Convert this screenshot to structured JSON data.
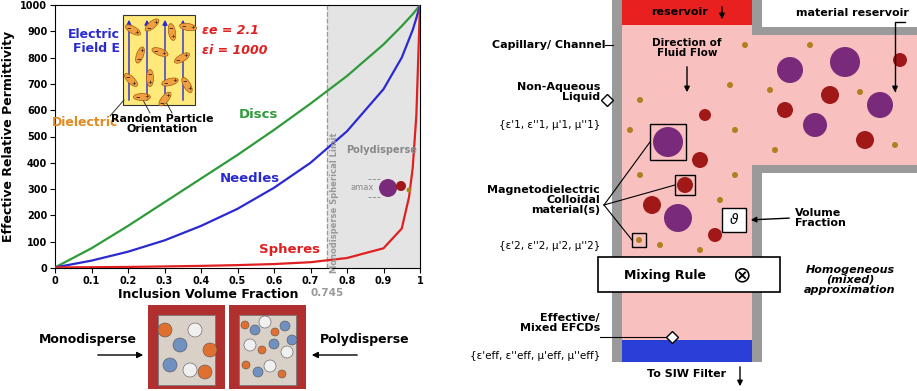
{
  "chart_data": {
    "type": "line",
    "xlabel": "Inclusion Volume Fraction",
    "ylabel": "Effective Relative Permittivity",
    "xlim": [
      0,
      1
    ],
    "ylim": [
      0,
      1000
    ],
    "xticks": [
      0,
      0.1,
      0.2,
      0.3,
      0.4,
      0.5,
      0.6,
      0.7,
      0.8,
      0.9,
      1
    ],
    "yticks": [
      0,
      100,
      200,
      300,
      400,
      500,
      600,
      700,
      800,
      900,
      1000
    ],
    "x": [
      0,
      0.1,
      0.2,
      0.3,
      0.4,
      0.5,
      0.6,
      0.7,
      0.8,
      0.9,
      0.95,
      0.97,
      0.98,
      0.99,
      1
    ],
    "series": [
      {
        "name": "Discs",
        "color": "#2e9b3a",
        "values": [
          2.1,
          75,
          160,
          250,
          340,
          430,
          525,
          625,
          730,
          850,
          920,
          950,
          965,
          982,
          1000
        ]
      },
      {
        "name": "Needles",
        "color": "#2a2ad0",
        "values": [
          2.1,
          28,
          62,
          105,
          160,
          225,
          305,
          400,
          520,
          680,
          800,
          870,
          905,
          950,
          1000
        ]
      },
      {
        "name": "Spheres",
        "color": "#e02020",
        "values": [
          2.1,
          3,
          4,
          6,
          8,
          11,
          15,
          22,
          38,
          75,
          150,
          270,
          380,
          580,
          1000
        ]
      }
    ],
    "spherical_limit": {
      "value": 0.745,
      "label": "Monodisperse Spherical Limit"
    }
  },
  "chart_inset": {
    "field_label": "Electric\nField E",
    "medium_label": "Dielectric",
    "orientation_label": "Random Particle\nOrientation",
    "eps_e": "εe = 2.1",
    "eps_i": "εi = 1000",
    "charges": [
      "+",
      "−"
    ]
  },
  "polydisperse_inset": {
    "label": "Polydisperse",
    "size_label": "amax"
  },
  "photos": {
    "left": "Monodisperse",
    "right": "Polydisperse"
  },
  "flow_diagram": {
    "top_reservoir": "reservoir",
    "material_reservoir": "material reservoir",
    "channel": "Capillary/ Channel",
    "flow": "Direction of\nFluid Flow",
    "liquid": {
      "name": "Non-Aqueous\nLiquid",
      "params": "{ε'1, ε''1, μ'1, μ''1}"
    },
    "colloid": {
      "name": "Magnetodielectric\nColloidal\nmaterial(s)",
      "params": "{ε'2, ε''2, μ'2, μ''2}"
    },
    "volume_fraction": {
      "name": "Volume\nFraction",
      "symbol": "ϑ"
    },
    "mixing_rule": {
      "name": "Mixing Rule",
      "symbol": "⊗"
    },
    "homogeneous": "Homogeneous\n(mixed)\napproximation",
    "effective": {
      "name": "Effective/\nMixed EFCDs",
      "params": "{ε'eff, ε''eff, μ'eff, μ''eff}"
    },
    "outlet": "To SIW Filter"
  }
}
